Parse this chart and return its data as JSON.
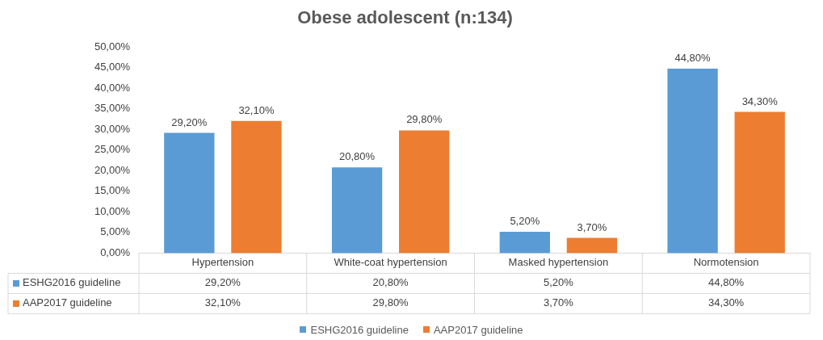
{
  "chart_data": {
    "type": "bar",
    "title": "Obese adolescent (n:134)",
    "categories": [
      "Hypertension",
      "White-coat hypertension",
      "Masked hypertension",
      "Normotension"
    ],
    "series": [
      {
        "name": "ESHG2016 guideline",
        "color": "#5b9bd5",
        "values": [
          29.2,
          20.8,
          5.2,
          44.8
        ],
        "value_labels": [
          "29,20%",
          "20,80%",
          "5,20%",
          "44,80%"
        ]
      },
      {
        "name": "AAP2017 guideline",
        "color": "#ed7d31",
        "values": [
          32.1,
          29.8,
          3.7,
          34.3
        ],
        "value_labels": [
          "32,10%",
          "29,80%",
          "3,70%",
          "34,30%"
        ]
      }
    ],
    "ylim": [
      0,
      50
    ],
    "yticks": [
      {
        "value": 0,
        "label": "0,00%"
      },
      {
        "value": 5,
        "label": "5,00%"
      },
      {
        "value": 10,
        "label": "10,00%"
      },
      {
        "value": 15,
        "label": "15,00%"
      },
      {
        "value": 20,
        "label": "20,00%"
      },
      {
        "value": 25,
        "label": "25,00%"
      },
      {
        "value": 30,
        "label": "30,00%"
      },
      {
        "value": 35,
        "label": "35,00%"
      },
      {
        "value": 40,
        "label": "40,00%"
      },
      {
        "value": 45,
        "label": "45,00%"
      },
      {
        "value": 50,
        "label": "50,00%"
      }
    ],
    "grid": false,
    "legend": "bottom"
  }
}
